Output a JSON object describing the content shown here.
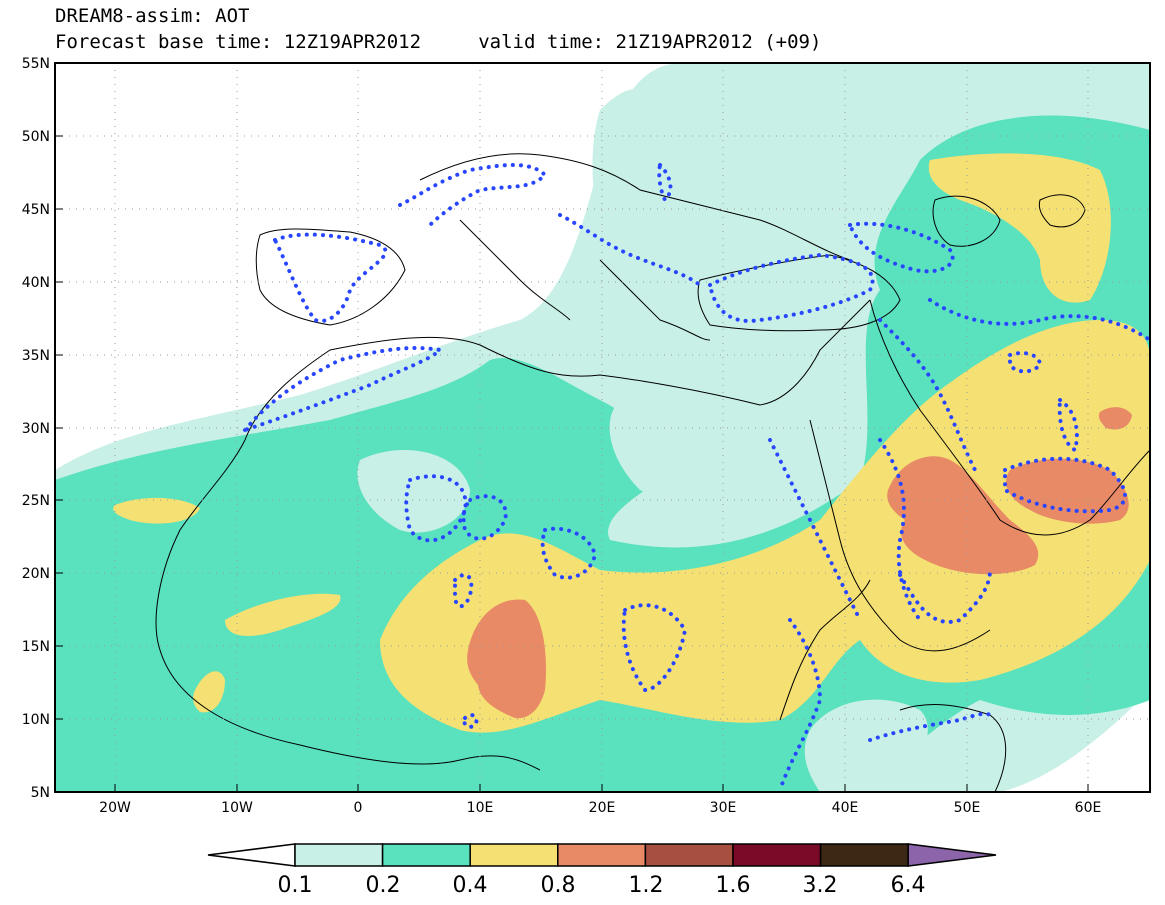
{
  "title": {
    "line1": "DREAM8-assim: AOT",
    "line2": "Forecast base time: 12Z19APR2012     valid time: 21Z19APR2012 (+09)"
  },
  "map": {
    "lat_ticks": [
      "55N",
      "50N",
      "45N",
      "40N",
      "35N",
      "30N",
      "25N",
      "20N",
      "15N",
      "10N",
      "5N"
    ],
    "lon_ticks": [
      "20W",
      "10W",
      "0",
      "10E",
      "20E",
      "30E",
      "40E",
      "50E",
      "60E"
    ],
    "lat_range": [
      5,
      55
    ],
    "lon_range": [
      -25,
      65
    ],
    "grid": "dotted",
    "coastline_color": "#000000",
    "contour_color": "#2846ff"
  },
  "colorbar": {
    "levels": [
      "0.1",
      "0.2",
      "0.4",
      "0.8",
      "1.2",
      "1.6",
      "3.2",
      "6.4"
    ],
    "colors": [
      "#c8f0e6",
      "#5ae1be",
      "#f5e173",
      "#e88a65",
      "#a85040",
      "#7a0a28",
      "#3c2814"
    ],
    "low_color": "#ffffff",
    "high_color": "#8c64aa"
  }
}
